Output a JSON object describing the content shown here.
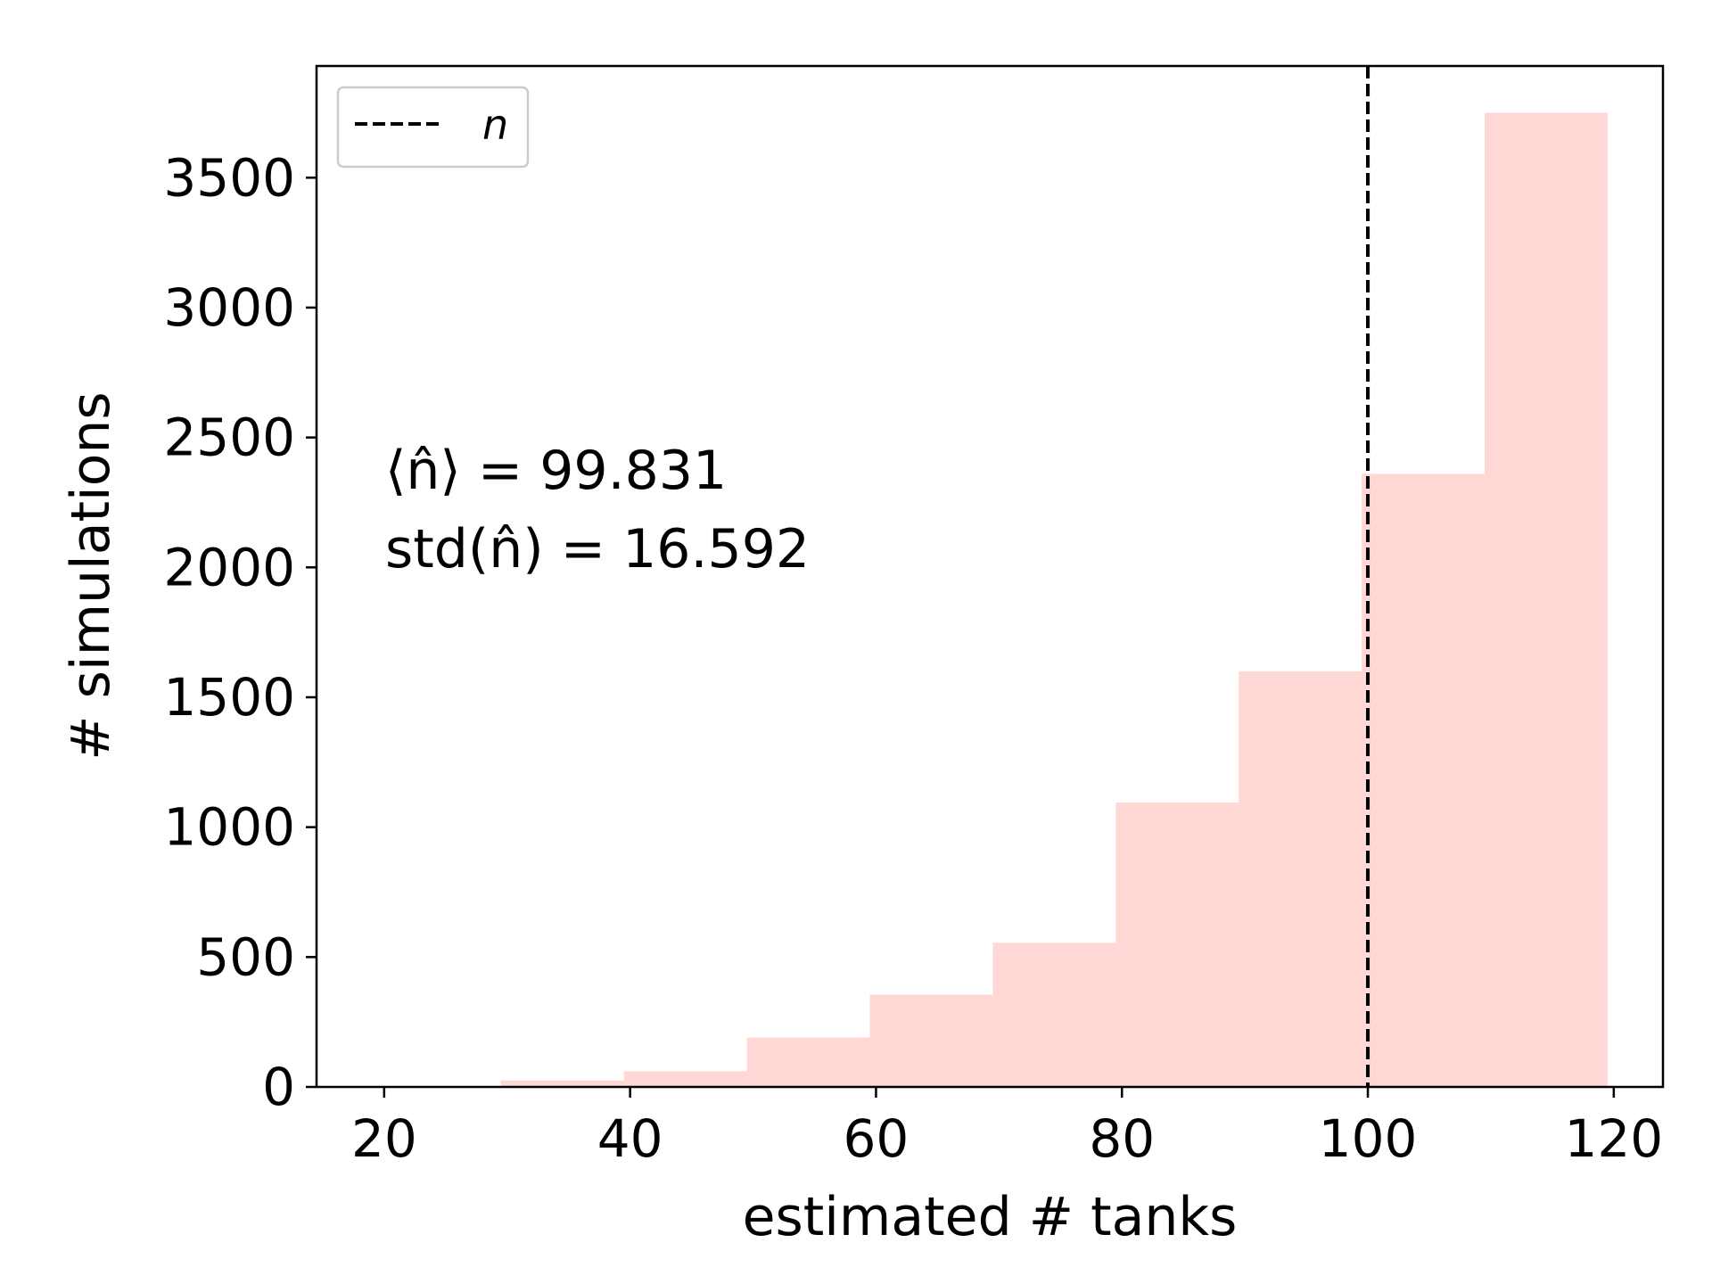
{
  "chart_data": {
    "type": "bar",
    "title": "",
    "xlabel": "estimated # tanks",
    "ylabel": "# simulations",
    "xlim": [
      14.5,
      124
    ],
    "ylim": [
      0,
      3930
    ],
    "xticks": [
      20,
      40,
      60,
      80,
      100,
      120
    ],
    "yticks": [
      0,
      500,
      1000,
      1500,
      2000,
      2500,
      3000,
      3500
    ],
    "bins": [
      29.5,
      39.5,
      49.5,
      59.5,
      69.5,
      79.5,
      89.5,
      99.5,
      109.5,
      119.5
    ],
    "counts": [
      25,
      60,
      190,
      355,
      555,
      1095,
      1600,
      2360,
      3750
    ],
    "bar_color": "#ffd7d5",
    "reference_line": {
      "x": 100,
      "style": "dashed",
      "color": "#000000",
      "label": "n"
    },
    "legend": {
      "position": "top-left",
      "entries": [
        "n"
      ]
    },
    "annotations": [
      "⟨n̂⟩ = 99.831",
      "std(n̂) = 16.592"
    ],
    "grid": false
  }
}
